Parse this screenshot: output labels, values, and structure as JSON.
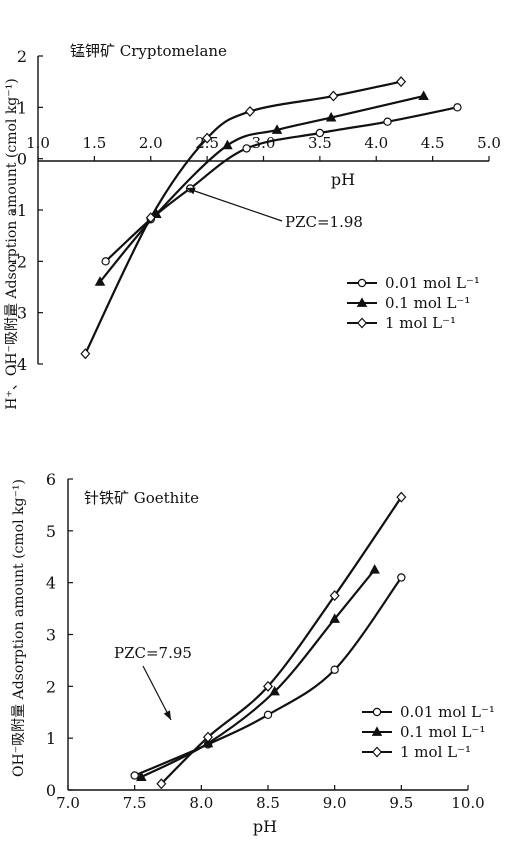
{
  "chart_data": [
    {
      "type": "line",
      "title": "锰钾矿 Cryptomelane",
      "xlabel": "pH",
      "ylabel": "H⁺、OH⁻吸附量 Adsorption amount (cmol kg⁻¹)",
      "xlim": [
        1.0,
        5.0
      ],
      "ylim": [
        -4,
        2
      ],
      "x_axis_at_y": 0,
      "x_ticks": [
        "1.0",
        "1.5",
        "2.0",
        "2.5",
        "3.0",
        "3.5",
        "4.0",
        "4.5",
        "5.0"
      ],
      "y_ticks": [
        "-4",
        "-3",
        "-2",
        "-1",
        "0",
        "1",
        "2"
      ],
      "grid": false,
      "legend_position": "right",
      "series": [
        {
          "name": "0.01 mol L⁻¹",
          "marker": "circle-open",
          "points": [
            [
              1.6,
              -2.0
            ],
            [
              2.0,
              -1.18
            ],
            [
              2.35,
              -0.58
            ],
            [
              2.85,
              0.2
            ],
            [
              3.5,
              0.5
            ],
            [
              4.1,
              0.72
            ],
            [
              4.72,
              1.0
            ]
          ]
        },
        {
          "name": "0.1 mol L⁻¹",
          "marker": "triangle-filled",
          "points": [
            [
              1.55,
              -2.4
            ],
            [
              2.05,
              -1.08
            ],
            [
              2.68,
              0.26
            ],
            [
              3.12,
              0.56
            ],
            [
              3.6,
              0.8
            ],
            [
              4.42,
              1.22
            ]
          ]
        },
        {
          "name": "1 mol L⁻¹",
          "marker": "diamond-open",
          "points": [
            [
              1.42,
              -3.8
            ],
            [
              2.0,
              -1.15
            ],
            [
              2.5,
              0.4
            ],
            [
              2.88,
              0.92
            ],
            [
              3.62,
              1.22
            ],
            [
              4.22,
              1.5
            ]
          ]
        }
      ],
      "annotations": [
        {
          "text": "PZC=1.98",
          "x": 1.98,
          "y": -1.05
        }
      ]
    },
    {
      "type": "line",
      "title": "针铁矿 Goethite",
      "xlabel": "pH",
      "ylabel": "OH⁻吸附量 Adsorption amount (cmol kg⁻¹)",
      "xlim": [
        7.0,
        10.0
      ],
      "ylim": [
        0,
        6
      ],
      "x_ticks": [
        "7.0",
        "7.5",
        "8.0",
        "8.5",
        "9.0",
        "9.5",
        "10.0"
      ],
      "y_ticks": [
        "0",
        "1",
        "2",
        "3",
        "4",
        "5",
        "6"
      ],
      "grid": false,
      "legend_position": "bottom-right",
      "series": [
        {
          "name": "0.01 mol L⁻¹",
          "marker": "circle-open",
          "points": [
            [
              7.5,
              0.28
            ],
            [
              8.05,
              0.88
            ],
            [
              8.5,
              1.45
            ],
            [
              9.0,
              2.32
            ],
            [
              9.5,
              4.1
            ]
          ]
        },
        {
          "name": "0.1 mol L⁻¹",
          "marker": "triangle-filled",
          "points": [
            [
              7.55,
              0.25
            ],
            [
              8.05,
              0.9
            ],
            [
              8.55,
              1.9
            ],
            [
              9.0,
              3.3
            ],
            [
              9.3,
              4.25
            ]
          ]
        },
        {
          "name": "1 mol L⁻¹",
          "marker": "diamond-open",
          "points": [
            [
              7.7,
              0.12
            ],
            [
              8.05,
              1.02
            ],
            [
              8.5,
              2.0
            ],
            [
              9.0,
              3.75
            ],
            [
              9.5,
              5.65
            ]
          ]
        }
      ],
      "annotations": [
        {
          "text": "PZC=7.95",
          "x": 7.95,
          "y": 0.9
        }
      ]
    }
  ]
}
